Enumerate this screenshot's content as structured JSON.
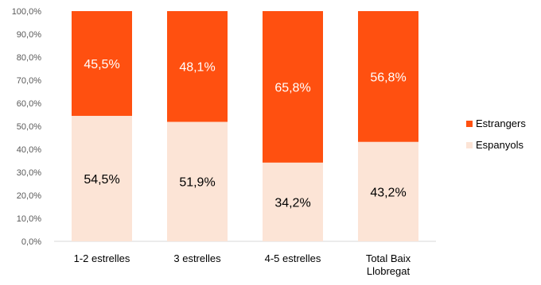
{
  "chart_data": {
    "type": "bar",
    "stacked": true,
    "categories": [
      "1-2 estrelles",
      "3 estrelles",
      "4-5 estrelles",
      "Total Baix Llobregat"
    ],
    "category_labels": [
      [
        "1-2 estrelles"
      ],
      [
        "3 estrelles"
      ],
      [
        "4-5 estrelles"
      ],
      [
        "Total Baix",
        "Llobregat"
      ]
    ],
    "series": [
      {
        "name": "Espanyols",
        "color": "#FCE4D6",
        "values": [
          54.5,
          51.9,
          34.2,
          43.2
        ],
        "labels": [
          "54,5%",
          "51,9%",
          "34,2%",
          "43,2%"
        ],
        "label_color": "#000000"
      },
      {
        "name": "Estrangers",
        "color": "#FF5010",
        "values": [
          45.5,
          48.1,
          65.8,
          56.8
        ],
        "labels": [
          "45,5%",
          "48,1%",
          "65,8%",
          "56,8%"
        ],
        "label_color": "#FFFFFF"
      }
    ],
    "ylim": [
      0,
      100
    ],
    "y_ticks": [
      0,
      10,
      20,
      30,
      40,
      50,
      60,
      70,
      80,
      90,
      100
    ],
    "y_tick_labels": [
      "0,0%",
      "10,0%",
      "20,0%",
      "30,0%",
      "40,0%",
      "50,0%",
      "60,0%",
      "70,0%",
      "80,0%",
      "90,0%",
      "100,0%"
    ],
    "legend_position": "right",
    "legend_items": [
      "Estrangers",
      "Espanyols"
    ],
    "grid": false,
    "title": "",
    "xlabel": "",
    "ylabel": ""
  }
}
